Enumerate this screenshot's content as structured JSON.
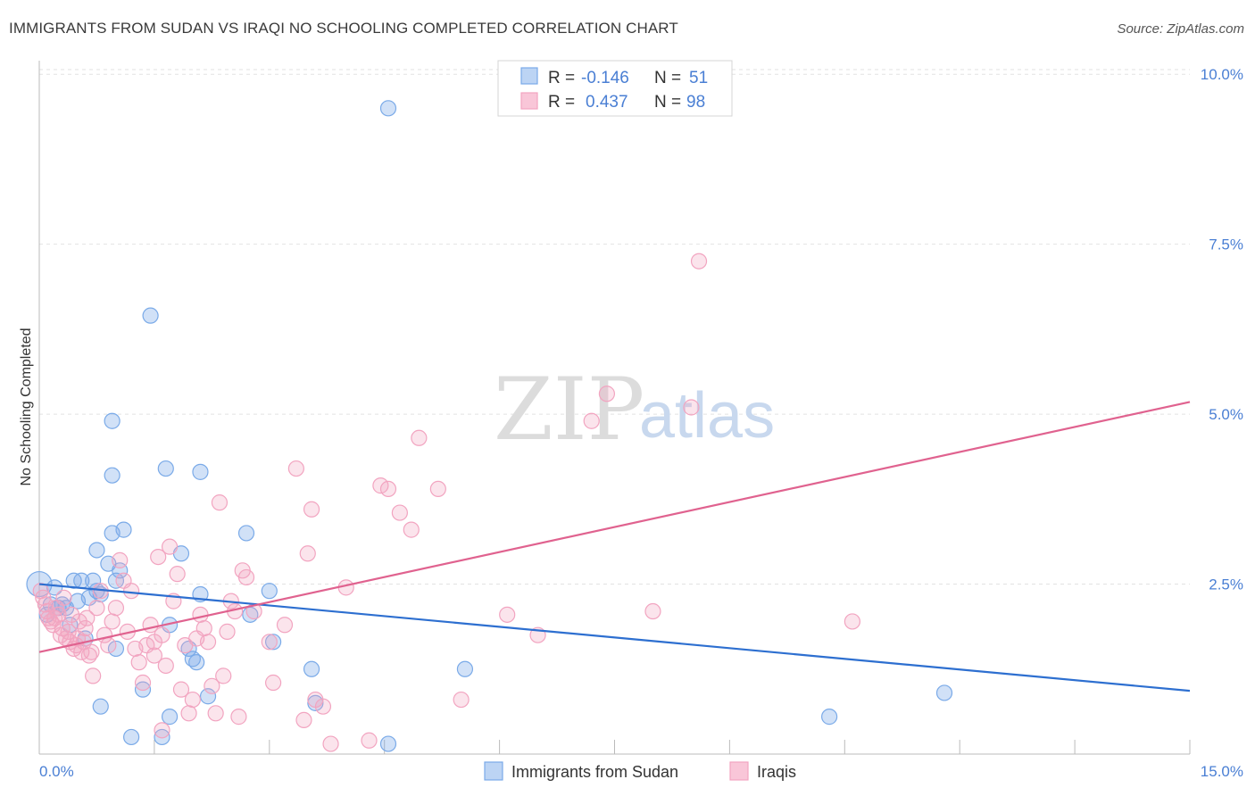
{
  "chart_data": {
    "type": "scatter",
    "title": "IMMIGRANTS FROM SUDAN VS IRAQI NO SCHOOLING COMPLETED CORRELATION CHART",
    "source": "Source: ZipAtlas.com",
    "xlabel": "",
    "ylabel": "No Schooling Completed",
    "xlim": [
      0,
      15
    ],
    "ylim": [
      0,
      10.2
    ],
    "x_tick_labels": [
      "0.0%",
      "15.0%"
    ],
    "y_ticks": [
      2.5,
      5.0,
      7.5,
      10.0
    ],
    "y_tick_labels": [
      "2.5%",
      "5.0%",
      "7.5%",
      "10.0%"
    ],
    "watermark": {
      "left": "ZIP",
      "right": "atlas"
    },
    "legend": {
      "rows": [
        {
          "r_label": "R =",
          "r_value": "-0.146",
          "n_label": "N =",
          "n_value": "51"
        },
        {
          "r_label": "R =",
          "r_value": "0.437",
          "n_label": "N =",
          "n_value": "98"
        }
      ]
    },
    "series": [
      {
        "name": "Immigrants from Sudan",
        "color": "#7aaae8",
        "line_color": "#2d6fd0",
        "trend": {
          "x0": 0,
          "y0": 2.5,
          "x1": 15,
          "y1": 0.93
        },
        "points": [
          [
            0.0,
            2.5
          ],
          [
            0.1,
            2.05
          ],
          [
            0.15,
            2.2
          ],
          [
            0.2,
            2.45
          ],
          [
            0.25,
            2.15
          ],
          [
            0.3,
            2.2
          ],
          [
            0.35,
            2.15
          ],
          [
            0.4,
            1.9
          ],
          [
            0.45,
            2.55
          ],
          [
            0.5,
            2.25
          ],
          [
            0.55,
            2.55
          ],
          [
            0.65,
            2.3
          ],
          [
            0.7,
            2.55
          ],
          [
            0.75,
            2.4
          ],
          [
            0.8,
            2.35
          ],
          [
            0.75,
            3.0
          ],
          [
            0.9,
            2.8
          ],
          [
            0.95,
            3.25
          ],
          [
            1.05,
            2.7
          ],
          [
            1.1,
            3.3
          ],
          [
            0.95,
            4.1
          ],
          [
            0.95,
            4.9
          ],
          [
            1.45,
            6.45
          ],
          [
            1.65,
            4.2
          ],
          [
            2.1,
            4.15
          ],
          [
            1.85,
            2.95
          ],
          [
            1.7,
            1.9
          ],
          [
            1.95,
            1.55
          ],
          [
            2.0,
            1.4
          ],
          [
            2.05,
            1.35
          ],
          [
            2.1,
            2.35
          ],
          [
            2.2,
            0.85
          ],
          [
            2.7,
            3.25
          ],
          [
            2.75,
            2.05
          ],
          [
            3.0,
            2.4
          ],
          [
            3.05,
            1.65
          ],
          [
            3.55,
            1.25
          ],
          [
            3.6,
            0.75
          ],
          [
            4.55,
            9.5
          ],
          [
            4.55,
            0.15
          ],
          [
            5.55,
            1.25
          ],
          [
            0.8,
            0.7
          ],
          [
            1.2,
            0.25
          ],
          [
            1.35,
            0.95
          ],
          [
            1.6,
            0.25
          ],
          [
            1.7,
            0.55
          ],
          [
            1.0,
            1.55
          ],
          [
            1.0,
            2.55
          ],
          [
            10.3,
            0.55
          ],
          [
            11.8,
            0.9
          ],
          [
            0.6,
            1.7
          ]
        ]
      },
      {
        "name": "Iraqis",
        "color": "#f2a4c0",
        "line_color": "#e0628f",
        "trend": {
          "x0": 0,
          "y0": 1.5,
          "x1": 15,
          "y1": 5.18
        },
        "points": [
          [
            0.05,
            2.3
          ],
          [
            0.1,
            2.1
          ],
          [
            0.15,
            1.95
          ],
          [
            0.2,
            2.0
          ],
          [
            0.25,
            2.05
          ],
          [
            0.3,
            1.85
          ],
          [
            0.35,
            1.7
          ],
          [
            0.4,
            1.65
          ],
          [
            0.45,
            1.55
          ],
          [
            0.5,
            1.7
          ],
          [
            0.55,
            1.5
          ],
          [
            0.6,
            1.85
          ],
          [
            0.65,
            1.45
          ],
          [
            0.7,
            1.15
          ],
          [
            0.75,
            2.15
          ],
          [
            0.8,
            2.4
          ],
          [
            0.85,
            1.75
          ],
          [
            0.9,
            1.6
          ],
          [
            0.95,
            1.95
          ],
          [
            1.0,
            2.15
          ],
          [
            1.05,
            2.85
          ],
          [
            1.1,
            2.55
          ],
          [
            1.15,
            1.8
          ],
          [
            1.2,
            2.4
          ],
          [
            1.25,
            1.55
          ],
          [
            1.3,
            1.35
          ],
          [
            1.35,
            1.05
          ],
          [
            1.4,
            1.6
          ],
          [
            1.45,
            1.9
          ],
          [
            1.5,
            1.65
          ],
          [
            1.55,
            2.9
          ],
          [
            1.6,
            1.75
          ],
          [
            1.65,
            1.3
          ],
          [
            1.7,
            3.05
          ],
          [
            1.75,
            2.25
          ],
          [
            1.8,
            2.65
          ],
          [
            1.85,
            0.95
          ],
          [
            1.9,
            1.6
          ],
          [
            1.95,
            0.6
          ],
          [
            2.0,
            0.8
          ],
          [
            2.05,
            1.7
          ],
          [
            2.1,
            2.05
          ],
          [
            2.15,
            1.85
          ],
          [
            2.2,
            1.65
          ],
          [
            2.25,
            1.0
          ],
          [
            2.3,
            0.6
          ],
          [
            2.35,
            3.7
          ],
          [
            2.4,
            1.15
          ],
          [
            2.45,
            1.8
          ],
          [
            2.5,
            2.25
          ],
          [
            2.55,
            2.1
          ],
          [
            2.6,
            0.55
          ],
          [
            2.65,
            2.7
          ],
          [
            2.7,
            2.6
          ],
          [
            2.8,
            2.1
          ],
          [
            3.0,
            1.65
          ],
          [
            3.05,
            1.05
          ],
          [
            3.2,
            1.9
          ],
          [
            3.35,
            4.2
          ],
          [
            3.45,
            0.5
          ],
          [
            3.5,
            2.95
          ],
          [
            3.55,
            3.6
          ],
          [
            3.6,
            0.8
          ],
          [
            3.7,
            0.7
          ],
          [
            3.8,
            0.15
          ],
          [
            4.0,
            2.45
          ],
          [
            4.3,
            0.2
          ],
          [
            4.45,
            3.95
          ],
          [
            4.55,
            3.9
          ],
          [
            4.7,
            3.55
          ],
          [
            4.85,
            3.3
          ],
          [
            4.95,
            4.65
          ],
          [
            5.2,
            3.9
          ],
          [
            5.5,
            0.8
          ],
          [
            6.1,
            2.05
          ],
          [
            6.5,
            1.75
          ],
          [
            7.2,
            4.9
          ],
          [
            7.4,
            5.3
          ],
          [
            8.0,
            2.1
          ],
          [
            8.6,
            7.25
          ],
          [
            8.5,
            5.1
          ],
          [
            10.6,
            1.95
          ],
          [
            0.02,
            2.4
          ],
          [
            0.08,
            2.2
          ],
          [
            0.12,
            2.0
          ],
          [
            0.18,
            1.9
          ],
          [
            0.22,
            2.15
          ],
          [
            0.28,
            1.75
          ],
          [
            0.32,
            2.3
          ],
          [
            0.38,
            1.8
          ],
          [
            0.42,
            2.05
          ],
          [
            0.48,
            1.6
          ],
          [
            0.52,
            1.95
          ],
          [
            0.58,
            1.65
          ],
          [
            0.62,
            2.0
          ],
          [
            0.68,
            1.5
          ],
          [
            1.5,
            1.45
          ],
          [
            1.6,
            0.35
          ]
        ]
      }
    ]
  }
}
